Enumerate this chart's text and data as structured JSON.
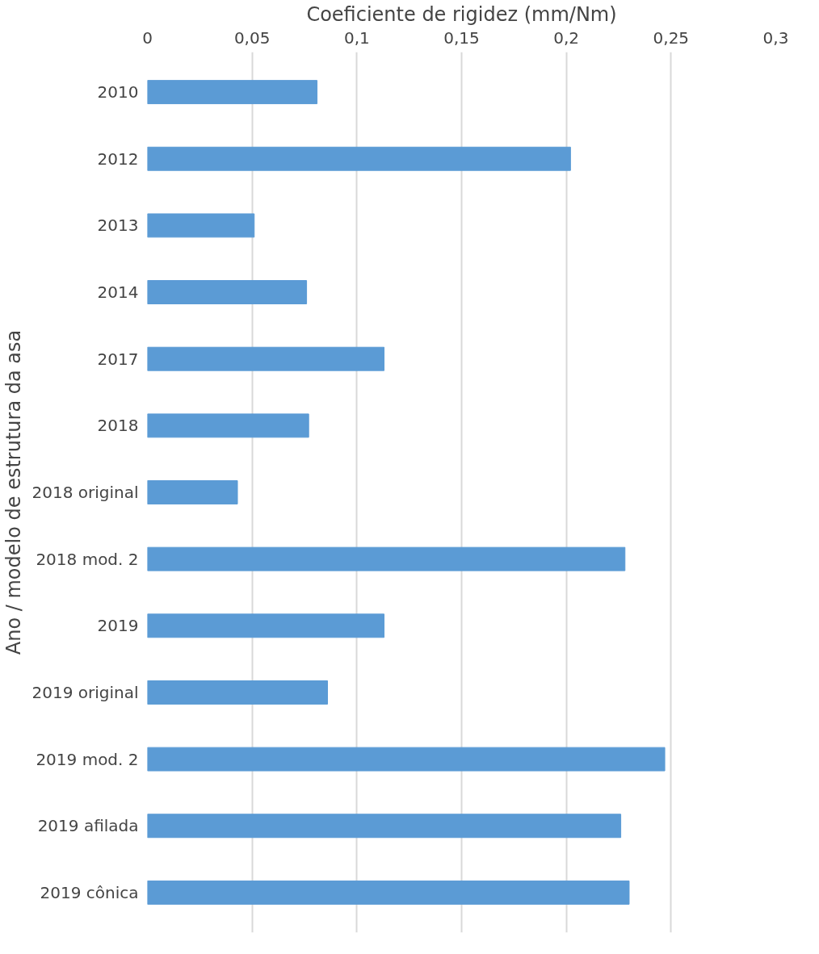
{
  "chart_data": {
    "type": "bar",
    "orientation": "horizontal",
    "xlabel": "Coeficiente de rigidez (mm/Nm)",
    "ylabel": "Ano / modelo de estrutura da asa",
    "categories": [
      "2010",
      "2012",
      "2013",
      "2014",
      "2017",
      "2018",
      "2018 original",
      "2018 mod. 2",
      "2019",
      "2019 original",
      "2019 mod. 2",
      "2019 afilada",
      "2019 cônica"
    ],
    "values": [
      0.081,
      0.202,
      0.051,
      0.076,
      0.113,
      0.077,
      0.043,
      0.228,
      0.113,
      0.086,
      0.247,
      0.226,
      0.23
    ],
    "color": "#5b9bd5",
    "xlim": [
      0,
      0.3
    ],
    "xticks": [
      0,
      {
        "value": 0.05,
        "label": "0,05"
      },
      {
        "value": 0.1,
        "label": "0,1"
      },
      {
        "value": 0.15,
        "label": "0,15"
      },
      {
        "value": 0.2,
        "label": "0,2"
      },
      {
        "value": 0.25,
        "label": "0,25"
      },
      {
        "value": 0.3,
        "label": "0,3"
      }
    ],
    "grid": "x"
  }
}
